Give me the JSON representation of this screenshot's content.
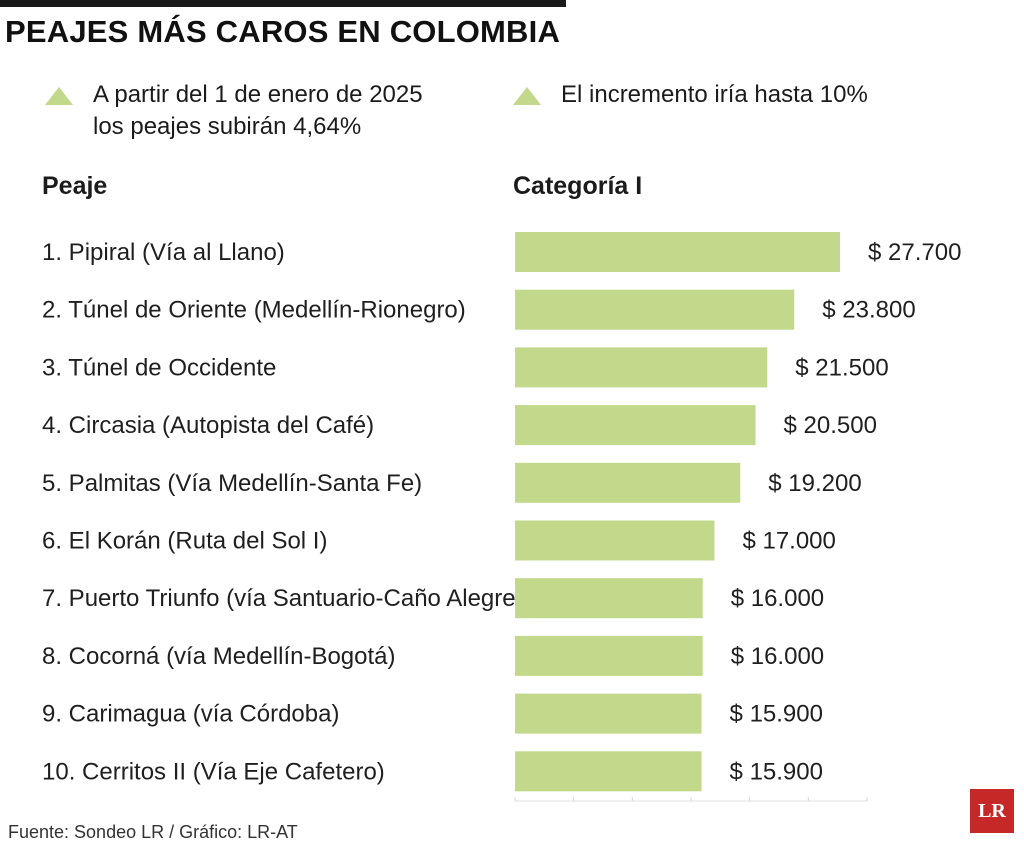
{
  "header": {
    "title": "PEAJES MÁS CAROS EN COLOMBIA"
  },
  "notes": [
    "A partir del 1 de enero de 2025\nlos peajes subirán 4,64%",
    "El incremento iría hasta 10%"
  ],
  "columns": {
    "left": "Peaje",
    "right": "Categoría I"
  },
  "source": "Fuente: Sondeo LR / Gráfico: LR-AT",
  "logo": "LR",
  "colors": {
    "bar": "#c2d88a",
    "bullet": "#c2d88a",
    "logo": "#c62828",
    "title_rule": "#1a1a1a"
  },
  "chart_data": {
    "type": "bar",
    "orientation": "horizontal",
    "categories": [
      "1. Pipiral (Vía al Llano)",
      "2. Túnel de Oriente (Medellín-Rionegro)",
      "3. Túnel de Occidente",
      "4. Circasia (Autopista del Café)",
      "5. Palmitas (Vía Medellín-Santa Fe)",
      "6. El Korán (Ruta del Sol I)",
      "7. Puerto Triunfo (vía Santuario-Caño Alegre)",
      "8. Cocorná (vía Medellín-Bogotá)",
      "9. Carimagua (vía Córdoba)",
      "10. Cerritos II (Vía Eje Cafetero)"
    ],
    "values": [
      27700,
      23800,
      21500,
      20500,
      19200,
      17000,
      16000,
      16000,
      15900,
      15900
    ],
    "value_labels": [
      "$ 27.700",
      "$ 23.800",
      "$ 21.500",
      "$ 20.500",
      "$ 19.200",
      "$ 17.000",
      "$ 16.000",
      "$ 16.000",
      "$ 15.900",
      "$ 15.900"
    ],
    "xlim": [
      0,
      30000
    ],
    "grid": false,
    "legend": "none"
  }
}
